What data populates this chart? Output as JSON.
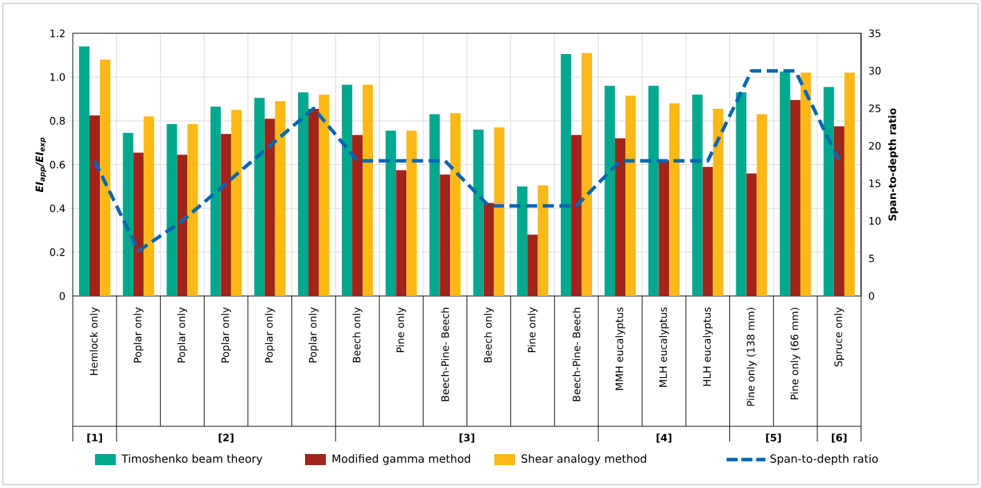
{
  "chart_data": {
    "type": "bar",
    "categories": [
      "Hemlock only",
      "Poplar only",
      "Poplar only",
      "Poplar only",
      "Poplar only",
      "Poplar only",
      "Beech only",
      "Pine only",
      "Beech-Pine- Beech",
      "Beech only",
      "Pine only",
      "Beech-Pine- Beech",
      "MMH eucalyptus",
      "MLH eucalyptus",
      "HLH eucalyptus",
      "Pine only (138 mm)",
      "Pine only (66 mm)",
      "Spruce only"
    ],
    "series": [
      {
        "name": "Timoshenko beam theory",
        "color": "#00a88e",
        "values": [
          1.14,
          0.745,
          0.785,
          0.865,
          0.905,
          0.93,
          0.965,
          0.755,
          0.83,
          0.76,
          0.5,
          1.105,
          0.96,
          0.96,
          0.92,
          0.93,
          1.025,
          0.955
        ]
      },
      {
        "name": "Modified gamma method",
        "color": "#a0241a",
        "values": [
          0.825,
          0.655,
          0.645,
          0.74,
          0.81,
          0.855,
          0.735,
          0.575,
          0.555,
          0.425,
          0.28,
          0.735,
          0.72,
          0.62,
          0.59,
          0.56,
          0.895,
          0.775
        ]
      },
      {
        "name": "Shear analogy method",
        "color": "#fbb817",
        "values": [
          1.08,
          0.82,
          0.785,
          0.85,
          0.89,
          0.92,
          0.965,
          0.755,
          0.835,
          0.77,
          0.505,
          1.11,
          0.915,
          0.88,
          0.855,
          0.83,
          1.02,
          1.02
        ]
      },
      {
        "name": "Span-to-depth ratio",
        "type": "line",
        "axis": "y2",
        "line_style": "dashed",
        "color": "#0066b3",
        "values": [
          18,
          6,
          10,
          15,
          20,
          25,
          18,
          18,
          18,
          12,
          12,
          12,
          18,
          18,
          18,
          30,
          30,
          18
        ]
      }
    ],
    "ylabel": "EI$_{app}$/EI$_{exp}$",
    "y2label": "Span-to-depth ratio",
    "ylim": [
      0,
      1.2
    ],
    "yticks": [
      0,
      0.2,
      0.4,
      0.6,
      0.8,
      {
        "value": 1,
        "label": "1.0"
      },
      1.2
    ],
    "y2lim": [
      0,
      35
    ],
    "y2ticks": [
      0,
      5,
      10,
      15,
      20,
      25,
      30,
      35
    ],
    "annotations": [
      "[1]",
      "[2]",
      "[3]",
      "[4]",
      "[5]",
      "[6]"
    ],
    "grid": true,
    "legend": "bottom"
  }
}
